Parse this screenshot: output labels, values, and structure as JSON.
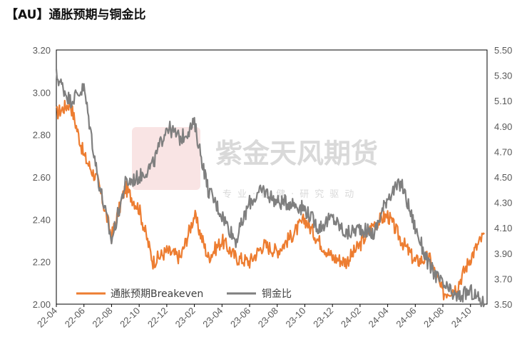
{
  "title": "【AU】通胀预期与铜金比",
  "watermark": {
    "name": "紫金天风期货",
    "slogan": "专业·稳健·研究驱动"
  },
  "colors": {
    "breakeven": "#ED7D31",
    "copper_gold": "#7F7F7F",
    "watermark": "#d9d9d9",
    "seal": "#f2c0c0"
  },
  "chart_data": {
    "type": "line",
    "title": "",
    "xlabel": "",
    "ylabel": "",
    "x_ticks": [
      "22-04",
      "22-06",
      "22-08",
      "22-10",
      "22-12",
      "23-02",
      "23-04",
      "23-06",
      "23-08",
      "23-10",
      "23-12",
      "24-02",
      "24-04",
      "24-06",
      "24-08",
      "24-10"
    ],
    "y_left": {
      "range": [
        2.0,
        3.2
      ],
      "ticks": [
        "2.00",
        "2.20",
        "2.40",
        "2.60",
        "2.80",
        "3.00",
        "3.20"
      ]
    },
    "y_right": {
      "range": [
        3.5,
        5.5
      ],
      "ticks": [
        "3.50",
        "3.70",
        "3.90",
        "4.10",
        "4.30",
        "4.50",
        "4.70",
        "4.90",
        "5.10",
        "5.30",
        "5.50"
      ]
    },
    "legend_position": "bottom-left",
    "grid": false,
    "series": [
      {
        "name": "通胀预期Breakeven",
        "axis": "left",
        "x": [
          "22-04",
          "22-05",
          "22-06",
          "22-07",
          "22-08",
          "22-09",
          "22-10",
          "22-11",
          "22-12",
          "23-01",
          "23-02",
          "23-03",
          "23-04",
          "23-05",
          "23-06",
          "23-07",
          "23-08",
          "23-09",
          "23-10",
          "23-11",
          "23-12",
          "24-01",
          "24-02",
          "24-03",
          "24-04",
          "24-05",
          "24-06",
          "24-07",
          "24-08",
          "24-09",
          "24-10",
          "24-11"
        ],
        "values": [
          2.9,
          2.95,
          2.7,
          2.58,
          2.32,
          2.55,
          2.45,
          2.2,
          2.25,
          2.22,
          2.42,
          2.22,
          2.3,
          2.22,
          2.2,
          2.28,
          2.25,
          2.32,
          2.4,
          2.3,
          2.22,
          2.2,
          2.28,
          2.38,
          2.42,
          2.3,
          2.2,
          2.22,
          2.05,
          2.08,
          2.22,
          2.33
        ]
      },
      {
        "name": "铜金比",
        "axis": "right",
        "x": [
          "22-04",
          "22-05",
          "22-06",
          "22-07",
          "22-08",
          "22-09",
          "22-10",
          "22-11",
          "22-12",
          "23-01",
          "23-02",
          "23-03",
          "23-04",
          "23-05",
          "23-06",
          "23-07",
          "23-08",
          "23-09",
          "23-10",
          "23-11",
          "23-12",
          "24-01",
          "24-02",
          "24-03",
          "24-04",
          "24-05",
          "24-06",
          "24-07",
          "24-08",
          "24-09",
          "24-10",
          "24-11"
        ],
        "values": [
          5.3,
          5.1,
          5.2,
          4.5,
          4.0,
          4.45,
          4.5,
          4.6,
          4.9,
          4.8,
          4.92,
          4.4,
          4.2,
          4.0,
          4.3,
          4.4,
          4.3,
          4.3,
          4.25,
          4.1,
          4.18,
          4.05,
          4.1,
          4.05,
          4.35,
          4.45,
          4.1,
          3.8,
          3.65,
          3.55,
          3.6,
          3.5
        ]
      }
    ]
  }
}
